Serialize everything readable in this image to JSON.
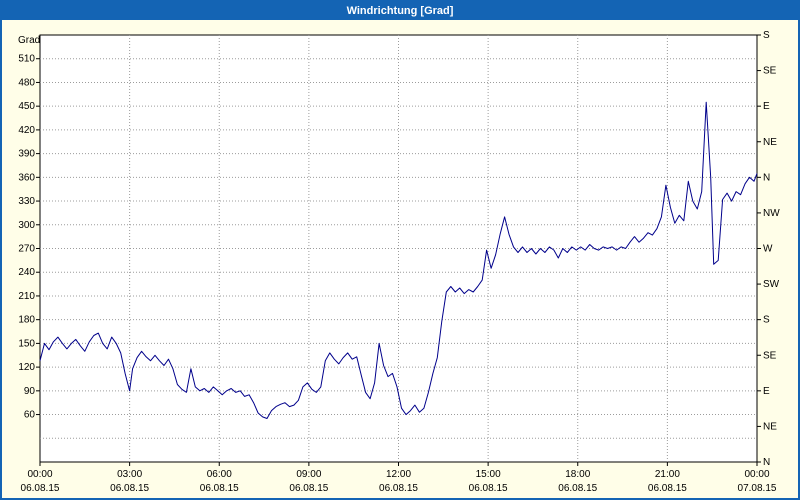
{
  "window": {
    "title": "Windrichtung [Grad]"
  },
  "colors": {
    "titlebar": "#1464b4",
    "window_border": "#1464b4",
    "window_bg": "#fffee8",
    "plot_bg": "#ffffff",
    "plot_border": "#000000",
    "grid": "#9c9c9c",
    "line": "#00008b",
    "text": "#000000"
  },
  "chart_data": {
    "type": "line",
    "title": "Windrichtung [Grad]",
    "grid": true,
    "y_axis": {
      "label": "Grad",
      "min": 0,
      "max": 540,
      "tick_step": 30,
      "tick_labels": [
        510,
        480,
        450,
        420,
        390,
        360,
        330,
        300,
        270,
        240,
        210,
        180,
        150,
        120,
        90,
        60
      ]
    },
    "x_axis": {
      "min": 0,
      "max": 24,
      "tick_step_hours": 3,
      "ticks": [
        {
          "hour": 0,
          "time": "00:00",
          "date": "06.08.15"
        },
        {
          "hour": 3,
          "time": "03:00",
          "date": "06.08.15"
        },
        {
          "hour": 6,
          "time": "06:00",
          "date": "06.08.15"
        },
        {
          "hour": 9,
          "time": "09:00",
          "date": "06.08.15"
        },
        {
          "hour": 12,
          "time": "12:00",
          "date": "06.08.15"
        },
        {
          "hour": 15,
          "time": "15:00",
          "date": "06.08.15"
        },
        {
          "hour": 18,
          "time": "18:00",
          "date": "06.08.15"
        },
        {
          "hour": 21,
          "time": "21:00",
          "date": "06.08.15"
        },
        {
          "hour": 24,
          "time": "00:00",
          "date": "07.08.15"
        }
      ]
    },
    "right_axis": {
      "labels": [
        {
          "deg": 540,
          "label": "S"
        },
        {
          "deg": 495,
          "label": "SE"
        },
        {
          "deg": 450,
          "label": "E"
        },
        {
          "deg": 405,
          "label": "NE"
        },
        {
          "deg": 360,
          "label": "N"
        },
        {
          "deg": 315,
          "label": "NW"
        },
        {
          "deg": 270,
          "label": "W"
        },
        {
          "deg": 225,
          "label": "SW"
        },
        {
          "deg": 180,
          "label": "S"
        },
        {
          "deg": 135,
          "label": "SE"
        },
        {
          "deg": 90,
          "label": "E"
        },
        {
          "deg": 45,
          "label": "NE"
        },
        {
          "deg": 0,
          "label": "N"
        }
      ]
    },
    "series": [
      {
        "name": "Windrichtung",
        "color": "#00008b",
        "points": [
          [
            0.0,
            128
          ],
          [
            0.15,
            150
          ],
          [
            0.3,
            142
          ],
          [
            0.45,
            152
          ],
          [
            0.6,
            158
          ],
          [
            0.75,
            150
          ],
          [
            0.9,
            143
          ],
          [
            1.05,
            150
          ],
          [
            1.2,
            155
          ],
          [
            1.35,
            147
          ],
          [
            1.5,
            140
          ],
          [
            1.65,
            152
          ],
          [
            1.8,
            160
          ],
          [
            1.95,
            163
          ],
          [
            2.1,
            150
          ],
          [
            2.25,
            143
          ],
          [
            2.4,
            158
          ],
          [
            2.55,
            150
          ],
          [
            2.7,
            138
          ],
          [
            2.85,
            112
          ],
          [
            3.0,
            90
          ],
          [
            3.1,
            118
          ],
          [
            3.25,
            132
          ],
          [
            3.4,
            140
          ],
          [
            3.55,
            133
          ],
          [
            3.7,
            128
          ],
          [
            3.85,
            135
          ],
          [
            4.0,
            128
          ],
          [
            4.15,
            122
          ],
          [
            4.3,
            130
          ],
          [
            4.45,
            118
          ],
          [
            4.6,
            98
          ],
          [
            4.75,
            92
          ],
          [
            4.9,
            88
          ],
          [
            5.05,
            118
          ],
          [
            5.2,
            95
          ],
          [
            5.35,
            90
          ],
          [
            5.5,
            93
          ],
          [
            5.65,
            88
          ],
          [
            5.8,
            95
          ],
          [
            5.95,
            90
          ],
          [
            6.1,
            85
          ],
          [
            6.25,
            90
          ],
          [
            6.4,
            93
          ],
          [
            6.55,
            88
          ],
          [
            6.7,
            90
          ],
          [
            6.85,
            83
          ],
          [
            7.0,
            85
          ],
          [
            7.15,
            75
          ],
          [
            7.3,
            62
          ],
          [
            7.45,
            57
          ],
          [
            7.6,
            55
          ],
          [
            7.75,
            65
          ],
          [
            7.9,
            70
          ],
          [
            8.05,
            73
          ],
          [
            8.2,
            75
          ],
          [
            8.35,
            70
          ],
          [
            8.5,
            72
          ],
          [
            8.65,
            78
          ],
          [
            8.8,
            95
          ],
          [
            8.95,
            100
          ],
          [
            9.1,
            92
          ],
          [
            9.25,
            88
          ],
          [
            9.4,
            95
          ],
          [
            9.55,
            128
          ],
          [
            9.7,
            138
          ],
          [
            9.85,
            130
          ],
          [
            10.0,
            124
          ],
          [
            10.15,
            132
          ],
          [
            10.3,
            138
          ],
          [
            10.45,
            130
          ],
          [
            10.6,
            133
          ],
          [
            10.75,
            110
          ],
          [
            10.9,
            88
          ],
          [
            11.05,
            80
          ],
          [
            11.2,
            100
          ],
          [
            11.35,
            150
          ],
          [
            11.5,
            122
          ],
          [
            11.65,
            108
          ],
          [
            11.8,
            112
          ],
          [
            11.95,
            95
          ],
          [
            12.1,
            68
          ],
          [
            12.25,
            60
          ],
          [
            12.4,
            65
          ],
          [
            12.55,
            72
          ],
          [
            12.7,
            63
          ],
          [
            12.85,
            68
          ],
          [
            13.0,
            88
          ],
          [
            13.15,
            112
          ],
          [
            13.3,
            132
          ],
          [
            13.45,
            178
          ],
          [
            13.6,
            215
          ],
          [
            13.75,
            222
          ],
          [
            13.9,
            215
          ],
          [
            14.05,
            220
          ],
          [
            14.2,
            213
          ],
          [
            14.35,
            218
          ],
          [
            14.5,
            215
          ],
          [
            14.65,
            222
          ],
          [
            14.8,
            230
          ],
          [
            14.95,
            268
          ],
          [
            15.1,
            245
          ],
          [
            15.25,
            262
          ],
          [
            15.4,
            288
          ],
          [
            15.55,
            310
          ],
          [
            15.7,
            288
          ],
          [
            15.85,
            272
          ],
          [
            16.0,
            265
          ],
          [
            16.15,
            272
          ],
          [
            16.3,
            265
          ],
          [
            16.45,
            270
          ],
          [
            16.6,
            263
          ],
          [
            16.75,
            270
          ],
          [
            16.9,
            265
          ],
          [
            17.05,
            272
          ],
          [
            17.2,
            268
          ],
          [
            17.35,
            258
          ],
          [
            17.5,
            270
          ],
          [
            17.65,
            265
          ],
          [
            17.8,
            272
          ],
          [
            17.95,
            268
          ],
          [
            18.1,
            272
          ],
          [
            18.25,
            268
          ],
          [
            18.4,
            275
          ],
          [
            18.55,
            270
          ],
          [
            18.7,
            268
          ],
          [
            18.85,
            272
          ],
          [
            19.0,
            270
          ],
          [
            19.15,
            272
          ],
          [
            19.3,
            268
          ],
          [
            19.45,
            272
          ],
          [
            19.6,
            270
          ],
          [
            19.75,
            278
          ],
          [
            19.9,
            285
          ],
          [
            20.05,
            278
          ],
          [
            20.2,
            283
          ],
          [
            20.35,
            290
          ],
          [
            20.5,
            287
          ],
          [
            20.65,
            295
          ],
          [
            20.8,
            310
          ],
          [
            20.95,
            350
          ],
          [
            21.1,
            322
          ],
          [
            21.25,
            302
          ],
          [
            21.4,
            312
          ],
          [
            21.55,
            305
          ],
          [
            21.7,
            355
          ],
          [
            21.85,
            330
          ],
          [
            22.0,
            320
          ],
          [
            22.15,
            342
          ],
          [
            22.3,
            455
          ],
          [
            22.45,
            360
          ],
          [
            22.55,
            250
          ],
          [
            22.7,
            255
          ],
          [
            22.85,
            332
          ],
          [
            23.0,
            340
          ],
          [
            23.15,
            330
          ],
          [
            23.3,
            342
          ],
          [
            23.45,
            338
          ],
          [
            23.6,
            352
          ],
          [
            23.75,
            360
          ],
          [
            23.9,
            355
          ],
          [
            24.0,
            365
          ]
        ]
      }
    ]
  }
}
